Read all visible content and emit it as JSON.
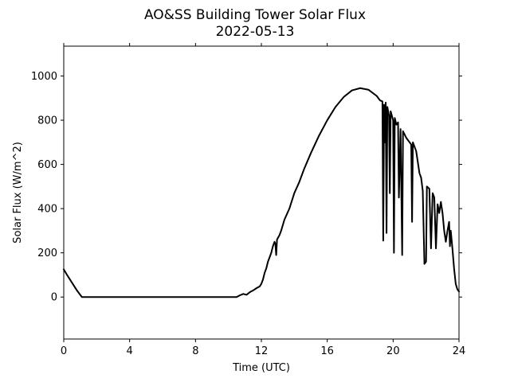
{
  "chart_data": {
    "type": "line",
    "title": "AO&SS Building Tower Solar Flux",
    "subtitle": "2022-05-13",
    "xlabel": "Time (UTC)",
    "ylabel": "Solar Flux (W/m^2)",
    "xlim": [
      0,
      24
    ],
    "ylim": [
      -190,
      1135
    ],
    "x_ticks": [
      0,
      4,
      8,
      12,
      16,
      20,
      24
    ],
    "y_ticks": [
      0,
      200,
      400,
      600,
      800,
      1000
    ],
    "grid": false,
    "line_color": "#000000",
    "series": [
      {
        "points": [
          [
            0.0,
            125
          ],
          [
            0.2,
            100
          ],
          [
            0.5,
            65
          ],
          [
            0.8,
            30
          ],
          [
            1.1,
            0
          ],
          [
            10.5,
            0
          ],
          [
            10.7,
            8
          ],
          [
            10.9,
            14
          ],
          [
            11.1,
            10
          ],
          [
            11.3,
            22
          ],
          [
            11.5,
            30
          ],
          [
            11.7,
            40
          ],
          [
            11.9,
            48
          ],
          [
            12.0,
            60
          ],
          [
            12.1,
            80
          ],
          [
            12.2,
            110
          ],
          [
            12.3,
            130
          ],
          [
            12.4,
            160
          ],
          [
            12.5,
            180
          ],
          [
            12.6,
            200
          ],
          [
            12.7,
            230
          ],
          [
            12.8,
            250
          ],
          [
            12.85,
            240
          ],
          [
            12.9,
            190
          ],
          [
            12.95,
            260
          ],
          [
            13.1,
            280
          ],
          [
            13.2,
            300
          ],
          [
            13.4,
            350
          ],
          [
            13.7,
            400
          ],
          [
            14.0,
            470
          ],
          [
            14.3,
            520
          ],
          [
            14.6,
            580
          ],
          [
            15.0,
            650
          ],
          [
            15.5,
            730
          ],
          [
            16.0,
            800
          ],
          [
            16.5,
            860
          ],
          [
            17.0,
            905
          ],
          [
            17.5,
            935
          ],
          [
            18.0,
            945
          ],
          [
            18.5,
            938
          ],
          [
            19.0,
            910
          ],
          [
            19.2,
            890
          ],
          [
            19.35,
            885
          ],
          [
            19.4,
            255
          ],
          [
            19.45,
            870
          ],
          [
            19.5,
            700
          ],
          [
            19.55,
            880
          ],
          [
            19.6,
            290
          ],
          [
            19.65,
            860
          ],
          [
            19.75,
            820
          ],
          [
            19.8,
            470
          ],
          [
            19.85,
            840
          ],
          [
            20.0,
            800
          ],
          [
            20.05,
            200
          ],
          [
            20.1,
            810
          ],
          [
            20.2,
            780
          ],
          [
            20.3,
            790
          ],
          [
            20.35,
            450
          ],
          [
            20.45,
            760
          ],
          [
            20.55,
            190
          ],
          [
            20.6,
            750
          ],
          [
            20.8,
            720
          ],
          [
            21.0,
            700
          ],
          [
            21.1,
            690
          ],
          [
            21.15,
            340
          ],
          [
            21.2,
            700
          ],
          [
            21.4,
            660
          ],
          [
            21.6,
            560
          ],
          [
            21.7,
            540
          ],
          [
            21.8,
            480
          ],
          [
            21.9,
            150
          ],
          [
            22.0,
            160
          ],
          [
            22.05,
            500
          ],
          [
            22.2,
            490
          ],
          [
            22.3,
            220
          ],
          [
            22.4,
            470
          ],
          [
            22.5,
            450
          ],
          [
            22.6,
            220
          ],
          [
            22.7,
            420
          ],
          [
            22.8,
            380
          ],
          [
            22.9,
            430
          ],
          [
            23.0,
            380
          ],
          [
            23.1,
            300
          ],
          [
            23.2,
            250
          ],
          [
            23.3,
            300
          ],
          [
            23.4,
            340
          ],
          [
            23.45,
            230
          ],
          [
            23.5,
            300
          ],
          [
            23.6,
            220
          ],
          [
            23.7,
            130
          ],
          [
            23.8,
            60
          ],
          [
            23.9,
            35
          ],
          [
            24.0,
            25
          ]
        ]
      }
    ]
  }
}
